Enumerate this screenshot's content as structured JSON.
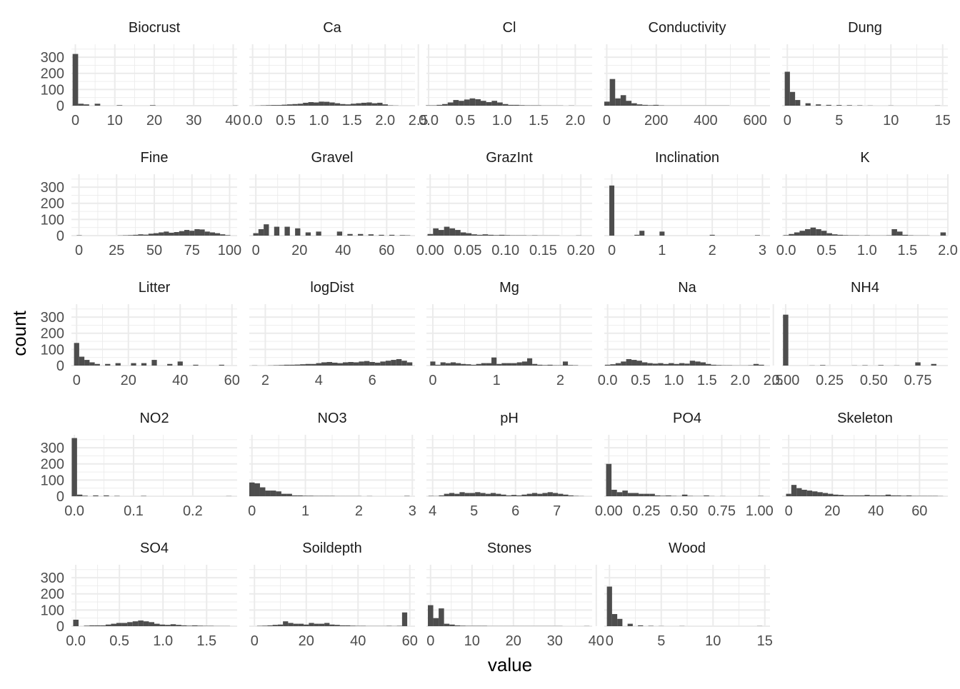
{
  "chart_data": {
    "type": "bar",
    "layout": "facet-grid",
    "xlabel": "value",
    "ylabel": "count",
    "y_ticks": [
      0,
      100,
      200,
      300
    ],
    "ylim": [
      0,
      380
    ],
    "grid": true,
    "bar_color": "#4d4d4d",
    "grid_color": "#ebebeb",
    "panels": [
      {
        "name": "Biocrust",
        "xlim": [
          -1,
          41
        ],
        "x_ticks": [
          0,
          10,
          20,
          30,
          40
        ],
        "x_tick_labels": [
          "0",
          "10",
          "20",
          "30",
          "40"
        ],
        "bin_start": -0.7,
        "bin_width": 1.4,
        "counts": [
          320,
          12,
          8,
          0,
          12,
          0,
          0,
          0,
          3,
          0,
          0,
          0,
          0,
          0,
          3,
          0,
          0,
          0,
          0,
          0,
          0,
          0,
          0,
          0,
          0,
          0,
          0,
          0,
          0,
          1
        ]
      },
      {
        "name": "Ca",
        "xlim": [
          -0.05,
          2.45
        ],
        "x_ticks": [
          0,
          0.5,
          1,
          1.5,
          2,
          2.5
        ],
        "x_tick_labels": [
          "0.0",
          "0.5",
          "1.0",
          "1.5",
          "2.0",
          "2.5"
        ],
        "bin_start": -0.04,
        "bin_width": 0.08,
        "counts": [
          0,
          1,
          2,
          3,
          4,
          4,
          6,
          8,
          10,
          12,
          18,
          22,
          20,
          25,
          24,
          20,
          15,
          10,
          8,
          12,
          15,
          18,
          20,
          15,
          18,
          8,
          2,
          1,
          0,
          0
        ]
      },
      {
        "name": "Cl",
        "xlim": [
          -0.03,
          2.23
        ],
        "x_ticks": [
          0,
          0.5,
          1,
          1.5,
          2
        ],
        "x_tick_labels": [
          "0.0",
          "0.5",
          "1.0",
          "1.5",
          "2.0"
        ],
        "bin_start": -0.04,
        "bin_width": 0.075,
        "counts": [
          2,
          2,
          5,
          10,
          20,
          35,
          30,
          38,
          45,
          40,
          30,
          22,
          30,
          20,
          10,
          5,
          5,
          3,
          2,
          2,
          2,
          1,
          1,
          1,
          1,
          0,
          1,
          0,
          0,
          0
        ]
      },
      {
        "name": "Conductivity",
        "xlim": [
          -10,
          660
        ],
        "x_ticks": [
          0,
          200,
          400,
          600
        ],
        "x_tick_labels": [
          "0",
          "200",
          "400",
          "600"
        ],
        "bin_start": -10,
        "bin_width": 22,
        "counts": [
          25,
          165,
          45,
          65,
          30,
          15,
          8,
          5,
          3,
          5,
          2,
          1,
          1,
          1,
          1,
          1,
          1,
          1,
          1,
          1,
          1,
          1,
          1,
          0,
          0,
          0,
          0,
          0,
          0,
          0
        ]
      },
      {
        "name": "Dung",
        "xlim": [
          -0.5,
          15.5
        ],
        "x_ticks": [
          0,
          5,
          10,
          15
        ],
        "x_tick_labels": [
          "0",
          "5",
          "10",
          "15"
        ],
        "bin_start": -0.25,
        "bin_width": 0.5,
        "counts": [
          210,
          85,
          35,
          0,
          15,
          0,
          8,
          0,
          5,
          0,
          4,
          0,
          3,
          0,
          2,
          0,
          1,
          0,
          0,
          0,
          1,
          0,
          0,
          0,
          0,
          0,
          0,
          0,
          0,
          1
        ]
      },
      {
        "name": "Fine",
        "xlim": [
          -5,
          105
        ],
        "x_ticks": [
          0,
          25,
          50,
          75,
          100
        ],
        "x_tick_labels": [
          "0",
          "25",
          "50",
          "75",
          "100"
        ],
        "bin_start": -1.5,
        "bin_width": 3.4,
        "counts": [
          2,
          0,
          0,
          0,
          0,
          0,
          0,
          0,
          1,
          2,
          3,
          5,
          8,
          6,
          12,
          15,
          20,
          25,
          18,
          22,
          28,
          35,
          30,
          40,
          38,
          25,
          20,
          15,
          8,
          3
        ]
      },
      {
        "name": "Gravel",
        "xlim": [
          -3,
          73
        ],
        "x_ticks": [
          0,
          20,
          40,
          60
        ],
        "x_tick_labels": [
          "0",
          "20",
          "40",
          "60"
        ],
        "bin_start": -1.2,
        "bin_width": 2.4,
        "counts": [
          15,
          40,
          70,
          0,
          55,
          0,
          55,
          0,
          45,
          0,
          20,
          0,
          25,
          0,
          0,
          0,
          25,
          0,
          10,
          0,
          10,
          0,
          8,
          0,
          5,
          0,
          5,
          0,
          3,
          2
        ]
      },
      {
        "name": "GrazInt",
        "xlim": [
          -0.005,
          0.215
        ],
        "x_ticks": [
          0,
          0.05,
          0.1,
          0.15,
          0.2
        ],
        "x_tick_labels": [
          "0.00",
          "0.05",
          "0.10",
          "0.15",
          "0.20"
        ],
        "bin_start": -0.0035,
        "bin_width": 0.0073,
        "counts": [
          10,
          45,
          35,
          55,
          45,
          35,
          20,
          15,
          8,
          5,
          8,
          5,
          3,
          5,
          3,
          2,
          2,
          2,
          1,
          2,
          1,
          1,
          1,
          1,
          0,
          0,
          0,
          1,
          0,
          0
        ]
      },
      {
        "name": "Inclination",
        "xlim": [
          -0.15,
          3.15
        ],
        "x_ticks": [
          0,
          1,
          2,
          3
        ],
        "x_tick_labels": [
          "0",
          "1",
          "2",
          "3"
        ],
        "bin_start": -0.05,
        "bin_width": 0.1,
        "counts": [
          310,
          0,
          0,
          0,
          0,
          5,
          30,
          0,
          0,
          0,
          25,
          0,
          0,
          0,
          0,
          0,
          0,
          0,
          0,
          0,
          5,
          0,
          0,
          0,
          0,
          0,
          0,
          0,
          0,
          3
        ]
      },
      {
        "name": "K",
        "xlim": [
          -0.05,
          2.0
        ],
        "x_ticks": [
          0,
          0.5,
          1,
          1.5,
          2
        ],
        "x_tick_labels": [
          "0.0",
          "0.5",
          "1.0",
          "1.5",
          "2.0"
        ],
        "bin_start": -0.035,
        "bin_width": 0.067,
        "counts": [
          3,
          10,
          20,
          30,
          40,
          50,
          40,
          30,
          15,
          8,
          5,
          3,
          2,
          2,
          1,
          2,
          1,
          1,
          1,
          2,
          40,
          25,
          5,
          2,
          1,
          1,
          1,
          0,
          0,
          20
        ]
      },
      {
        "name": "Litter",
        "xlim": [
          -2,
          62
        ],
        "x_ticks": [
          0,
          20,
          40,
          60
        ],
        "x_tick_labels": [
          "0",
          "20",
          "40",
          "60"
        ],
        "bin_start": -1,
        "bin_width": 2,
        "counts": [
          140,
          55,
          35,
          20,
          10,
          0,
          10,
          0,
          15,
          0,
          0,
          15,
          0,
          15,
          0,
          35,
          0,
          0,
          10,
          0,
          25,
          0,
          0,
          5,
          0,
          0,
          0,
          0,
          5,
          0
        ]
      },
      {
        "name": "logDist",
        "xlim": [
          1.4,
          7.6
        ],
        "x_ticks": [
          2,
          4,
          6
        ],
        "x_tick_labels": [
          "2",
          "4",
          "6"
        ],
        "bin_start": 1.5,
        "bin_width": 0.2,
        "counts": [
          1,
          0,
          0,
          1,
          2,
          3,
          5,
          5,
          6,
          8,
          10,
          10,
          15,
          20,
          22,
          18,
          15,
          20,
          22,
          20,
          25,
          28,
          22,
          18,
          25,
          30,
          35,
          40,
          30,
          20
        ]
      },
      {
        "name": "Mg",
        "xlim": [
          -0.1,
          2.5
        ],
        "x_ticks": [
          0,
          1,
          2
        ],
        "x_tick_labels": [
          "0",
          "1",
          "2"
        ],
        "bin_start": -0.04,
        "bin_width": 0.08,
        "counts": [
          25,
          5,
          20,
          15,
          20,
          15,
          10,
          8,
          5,
          10,
          15,
          15,
          50,
          10,
          15,
          15,
          15,
          20,
          25,
          45,
          10,
          5,
          3,
          5,
          2,
          2,
          25,
          3,
          2,
          0
        ]
      },
      {
        "name": "Na",
        "xlim": [
          -0.05,
          2.45
        ],
        "x_ticks": [
          0,
          0.5,
          1,
          1.5,
          2,
          2.5
        ],
        "x_tick_labels": [
          "0.0",
          "0.5",
          "1.0",
          "1.5",
          "2.0",
          "2.5"
        ],
        "bin_start": -0.04,
        "bin_width": 0.08,
        "counts": [
          5,
          8,
          15,
          25,
          40,
          35,
          30,
          20,
          15,
          12,
          15,
          10,
          15,
          10,
          15,
          12,
          30,
          25,
          20,
          10,
          5,
          3,
          2,
          2,
          1,
          1,
          1,
          2,
          10,
          5
        ]
      },
      {
        "name": "NH4",
        "xlim": [
          -0.02,
          0.92
        ],
        "x_ticks": [
          0,
          0.25,
          0.5,
          0.75
        ],
        "x_tick_labels": [
          "0.00",
          "0.25",
          "0.50",
          "0.75"
        ],
        "bin_start": -0.015,
        "bin_width": 0.03,
        "counts": [
          315,
          0,
          0,
          0,
          0,
          1,
          0,
          3,
          0,
          0,
          0,
          0,
          0,
          1,
          0,
          2,
          0,
          0,
          3,
          0,
          0,
          1,
          0,
          0,
          0,
          20,
          0,
          0,
          10,
          0
        ]
      },
      {
        "name": "NO2",
        "xlim": [
          -0.005,
          0.275
        ],
        "x_ticks": [
          0,
          0.1,
          0.2
        ],
        "x_tick_labels": [
          "0.0",
          "0.1",
          "0.2"
        ],
        "bin_start": -0.0045,
        "bin_width": 0.009,
        "counts": [
          360,
          10,
          3,
          0,
          5,
          0,
          5,
          0,
          2,
          0,
          0,
          0,
          0,
          2,
          0,
          0,
          0,
          0,
          0,
          0,
          0,
          0,
          0,
          0,
          0,
          0,
          0,
          0,
          0,
          1
        ]
      },
      {
        "name": "NO3",
        "xlim": [
          -0.05,
          3.05
        ],
        "x_ticks": [
          0,
          1,
          2,
          3
        ],
        "x_tick_labels": [
          "0",
          "1",
          "2",
          "3"
        ],
        "bin_start": -0.05,
        "bin_width": 0.1,
        "counts": [
          85,
          80,
          55,
          35,
          35,
          30,
          15,
          15,
          5,
          5,
          3,
          3,
          2,
          2,
          2,
          2,
          1,
          1,
          1,
          1,
          1,
          0,
          1,
          0,
          0,
          0,
          0,
          0,
          0,
          2
        ]
      },
      {
        "name": "pH",
        "xlim": [
          3.85,
          7.85
        ],
        "x_ticks": [
          4,
          5,
          6,
          7
        ],
        "x_tick_labels": [
          "4",
          "5",
          "6",
          "7"
        ],
        "bin_start": 3.9,
        "bin_width": 0.125,
        "counts": [
          2,
          1,
          5,
          15,
          20,
          15,
          25,
          20,
          20,
          25,
          20,
          15,
          20,
          15,
          10,
          5,
          8,
          5,
          10,
          15,
          20,
          15,
          20,
          25,
          20,
          15,
          10,
          5,
          2,
          1
        ]
      },
      {
        "name": "PO4",
        "xlim": [
          -0.03,
          1.07
        ],
        "x_ticks": [
          0,
          0.25,
          0.5,
          0.75,
          1
        ],
        "x_tick_labels": [
          "0.00",
          "0.25",
          "0.50",
          "0.75",
          "1.00"
        ],
        "bin_start": -0.018,
        "bin_width": 0.036,
        "counts": [
          200,
          40,
          25,
          35,
          20,
          20,
          15,
          15,
          15,
          5,
          3,
          5,
          2,
          1,
          10,
          2,
          1,
          1,
          5,
          1,
          0,
          1,
          0,
          0,
          0,
          0,
          0,
          0,
          2,
          0
        ]
      },
      {
        "name": "Skeleton",
        "xlim": [
          -3,
          73
        ],
        "x_ticks": [
          0,
          20,
          40,
          60
        ],
        "x_tick_labels": [
          "0",
          "20",
          "40",
          "60"
        ],
        "bin_start": -1.2,
        "bin_width": 2.4,
        "counts": [
          15,
          70,
          50,
          40,
          35,
          30,
          25,
          20,
          15,
          10,
          8,
          5,
          5,
          5,
          5,
          8,
          5,
          5,
          5,
          10,
          5,
          5,
          3,
          5,
          2,
          2,
          2,
          2,
          2,
          1
        ]
      },
      {
        "name": "SO4",
        "xlim": [
          -0.05,
          1.85
        ],
        "x_ticks": [
          0,
          0.5,
          1,
          1.5
        ],
        "x_tick_labels": [
          "0.0",
          "0.5",
          "1.0",
          "1.5"
        ],
        "bin_start": -0.03,
        "bin_width": 0.062,
        "counts": [
          40,
          0,
          3,
          5,
          5,
          5,
          10,
          15,
          20,
          20,
          25,
          30,
          35,
          30,
          25,
          15,
          10,
          8,
          12,
          8,
          5,
          3,
          5,
          3,
          2,
          2,
          1,
          1,
          1,
          0
        ]
      },
      {
        "name": "Soildepth",
        "xlim": [
          -2,
          62
        ],
        "x_ticks": [
          0,
          20,
          40,
          60
        ],
        "x_tick_labels": [
          "0",
          "20",
          "40",
          "60"
        ],
        "bin_start": -1,
        "bin_width": 2,
        "counts": [
          0,
          2,
          3,
          5,
          8,
          10,
          30,
          20,
          15,
          15,
          10,
          20,
          15,
          15,
          20,
          10,
          8,
          5,
          5,
          3,
          2,
          2,
          1,
          1,
          1,
          1,
          2,
          1,
          2,
          85
        ]
      },
      {
        "name": "Stones",
        "xlim": [
          -1,
          39
        ],
        "x_ticks": [
          0,
          10,
          20,
          30,
          40
        ],
        "x_tick_labels": [
          "0",
          "10",
          "20",
          "30",
          "40"
        ],
        "bin_start": -0.65,
        "bin_width": 1.3,
        "counts": [
          130,
          50,
          110,
          15,
          10,
          5,
          3,
          2,
          2,
          2,
          2,
          1,
          1,
          1,
          1,
          1,
          1,
          1,
          1,
          1,
          1,
          1,
          1,
          1,
          1,
          0,
          0,
          0,
          0,
          1
        ]
      },
      {
        "name": "Wood",
        "xlim": [
          -0.5,
          15.5
        ],
        "x_ticks": [
          0,
          5,
          10,
          15
        ],
        "x_tick_labels": [
          "0",
          "5",
          "10",
          "15"
        ],
        "bin_start": -0.25,
        "bin_width": 0.5,
        "counts": [
          245,
          75,
          45,
          0,
          15,
          0,
          5,
          0,
          2,
          0,
          1,
          0,
          0,
          0,
          1,
          0,
          0,
          0,
          0,
          0,
          0,
          0,
          0,
          0,
          0,
          0,
          0,
          0,
          0,
          1
        ]
      }
    ]
  }
}
